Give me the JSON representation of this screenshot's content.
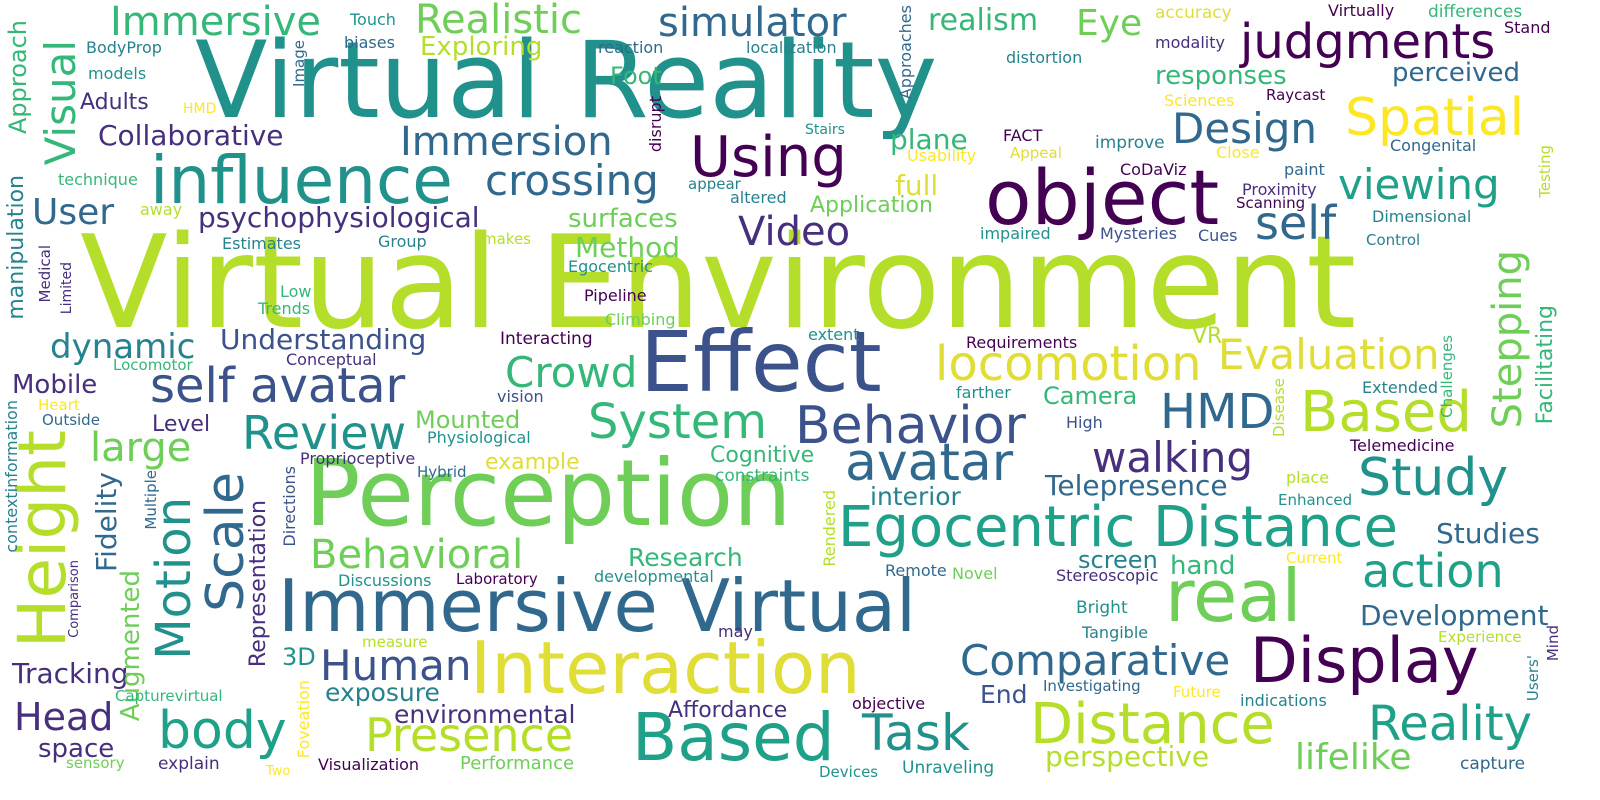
{
  "palette": {
    "background": "#ffffff",
    "deep-purple": "#440154",
    "indigo": "#472f7d",
    "blue": "#3b528b",
    "steel-blue": "#31688e",
    "teal-blue": "#26828e",
    "teal": "#21918c",
    "sea-green": "#1fa088",
    "green": "#35b779",
    "light-green": "#6ece58",
    "lime": "#b5de2b",
    "yellow": "#e1dd37",
    "bright-yellow": "#fde725"
  },
  "words": [
    {
      "text": "Virtual Environment",
      "color": "#b5de2b"
    },
    {
      "text": "Virtual Reality",
      "color": "#21918c"
    },
    {
      "text": "Perception",
      "color": "#6ece58"
    },
    {
      "text": "Immersive Virtual",
      "color": "#31688e"
    },
    {
      "text": "Effect",
      "color": "#3b528b"
    },
    {
      "text": "object",
      "color": "#440154"
    },
    {
      "text": "Interaction",
      "color": "#e1dd37"
    },
    {
      "text": "Egocentric Distance",
      "color": "#1fa088"
    },
    {
      "text": "influence",
      "color": "#21918c"
    },
    {
      "text": "real",
      "color": "#6ece58"
    },
    {
      "text": "Using",
      "color": "#440154"
    },
    {
      "text": "Height",
      "color": "#b5de2b"
    },
    {
      "text": "Display",
      "color": "#440154"
    },
    {
      "text": "Based",
      "color": "#1fa088"
    },
    {
      "text": "Distance",
      "color": "#b5de2b"
    },
    {
      "text": "Based",
      "color": "#b5de2b"
    },
    {
      "text": "HMD",
      "color": "#31688e"
    },
    {
      "text": "System",
      "color": "#35b779"
    },
    {
      "text": "Behavior",
      "color": "#3b528b"
    },
    {
      "text": "self avatar",
      "color": "#3b528b"
    },
    {
      "text": "Scale",
      "color": "#31688e"
    },
    {
      "text": "Motion",
      "color": "#21918c"
    },
    {
      "text": "Spatial",
      "color": "#fde725"
    },
    {
      "text": "judgments",
      "color": "#440154"
    },
    {
      "text": "locomotion",
      "color": "#e1dd37"
    },
    {
      "text": "avatar",
      "color": "#31688e"
    },
    {
      "text": "Study",
      "color": "#21918c"
    },
    {
      "text": "Reality",
      "color": "#1fa088"
    },
    {
      "text": "action",
      "color": "#1fa088"
    },
    {
      "text": "body",
      "color": "#1fa088"
    },
    {
      "text": "Presence",
      "color": "#b5de2b"
    },
    {
      "text": "Task",
      "color": "#21918c"
    },
    {
      "text": "Evaluation",
      "color": "#e1dd37"
    },
    {
      "text": "Comparative",
      "color": "#31688e"
    },
    {
      "text": "Human",
      "color": "#3b528b"
    },
    {
      "text": "Behavioral",
      "color": "#6ece58"
    },
    {
      "text": "Immersive",
      "color": "#35b779"
    },
    {
      "text": "Realistic",
      "color": "#6ece58"
    },
    {
      "text": "simulator",
      "color": "#31688e"
    },
    {
      "text": "crossing",
      "color": "#31688e"
    },
    {
      "text": "Immersion",
      "color": "#31688e"
    },
    {
      "text": "Design",
      "color": "#31688e"
    },
    {
      "text": "viewing",
      "color": "#1fa088"
    },
    {
      "text": "self",
      "color": "#31688e"
    },
    {
      "text": "Video",
      "color": "#472f7d"
    },
    {
      "text": "Review",
      "color": "#21918c"
    },
    {
      "text": "Crowd",
      "color": "#35b779"
    },
    {
      "text": "walking",
      "color": "#472f7d"
    },
    {
      "text": "Visual",
      "color": "#35b779"
    },
    {
      "text": "Stepping",
      "color": "#6ece58"
    },
    {
      "text": "large",
      "color": "#6ece58"
    },
    {
      "text": "dynamic",
      "color": "#26828e"
    },
    {
      "text": "lifelike",
      "color": "#6ece58"
    },
    {
      "text": "perspective",
      "color": "#b5de2b"
    },
    {
      "text": "Head",
      "color": "#472f7d"
    },
    {
      "text": "psychophysiological",
      "color": "#472f7d"
    },
    {
      "text": "Collaborative",
      "color": "#472f7d"
    },
    {
      "text": "Understanding",
      "color": "#3b528b"
    },
    {
      "text": "Telepresence",
      "color": "#31688e"
    },
    {
      "text": "Development",
      "color": "#31688e"
    },
    {
      "text": "Studies",
      "color": "#31688e"
    },
    {
      "text": "Tracking",
      "color": "#472f7d"
    },
    {
      "text": "environmental",
      "color": "#472f7d"
    },
    {
      "text": "Mobile",
      "color": "#472f7d"
    },
    {
      "text": "User",
      "color": "#31688e"
    },
    {
      "text": "Eye",
      "color": "#6ece58"
    },
    {
      "text": "realism",
      "color": "#35b779"
    },
    {
      "text": "Method",
      "color": "#6ece58"
    },
    {
      "text": "surfaces",
      "color": "#6ece58"
    },
    {
      "text": "full",
      "color": "#e1dd37"
    },
    {
      "text": "plane",
      "color": "#35b779"
    },
    {
      "text": "Application",
      "color": "#6ece58"
    },
    {
      "text": "responses",
      "color": "#35b779"
    },
    {
      "text": "perceived",
      "color": "#31688e"
    },
    {
      "text": "Exploring",
      "color": "#b5de2b"
    },
    {
      "text": "Foot",
      "color": "#35b779"
    },
    {
      "text": "exposure",
      "color": "#26828e"
    },
    {
      "text": "End",
      "color": "#3b528b"
    },
    {
      "text": "Affordance",
      "color": "#472f7d"
    },
    {
      "text": "Research",
      "color": "#35b779"
    },
    {
      "text": "interior",
      "color": "#26828e"
    },
    {
      "text": "Mounted",
      "color": "#6ece58"
    },
    {
      "text": "example",
      "color": "#e1dd37"
    },
    {
      "text": "Cognitive",
      "color": "#35b779"
    },
    {
      "text": "Camera",
      "color": "#35b779"
    },
    {
      "text": "hand",
      "color": "#35b779"
    },
    {
      "text": "screen",
      "color": "#26828e"
    },
    {
      "text": "Adults",
      "color": "#472f7d"
    },
    {
      "text": "Level",
      "color": "#472f7d"
    },
    {
      "text": "space",
      "color": "#472f7d"
    },
    {
      "text": "3D",
      "color": "#21918c"
    },
    {
      "text": "Fidelity",
      "color": "#31688e"
    },
    {
      "text": "Augmented",
      "color": "#6ece58"
    },
    {
      "text": "Representation",
      "color": "#472f7d"
    },
    {
      "text": "Approach",
      "color": "#35b779"
    },
    {
      "text": "manipulation",
      "color": "#26828e"
    },
    {
      "text": "Facilitating",
      "color": "#35b779"
    },
    {
      "text": "VR",
      "color": "#b5de2b"
    },
    {
      "text": "Touch",
      "color": "#21918c"
    },
    {
      "text": "biases",
      "color": "#31688e"
    },
    {
      "text": "BodyProp",
      "color": "#26828e"
    },
    {
      "text": "models",
      "color": "#21918c"
    },
    {
      "text": "HMD",
      "color": "#fde725"
    },
    {
      "text": "technique",
      "color": "#35b779"
    },
    {
      "text": "away",
      "color": "#b5de2b"
    },
    {
      "text": "Estimates",
      "color": "#26828e"
    },
    {
      "text": "Group",
      "color": "#26828e"
    },
    {
      "text": "makes",
      "color": "#b5de2b"
    },
    {
      "text": "Egocentric",
      "color": "#21918c"
    },
    {
      "text": "Pipeline",
      "color": "#440154"
    },
    {
      "text": "Low",
      "color": "#35b779"
    },
    {
      "text": "Trends",
      "color": "#35b779"
    },
    {
      "text": "Climbing",
      "color": "#6ece58"
    },
    {
      "text": "Interacting",
      "color": "#440154"
    },
    {
      "text": "Conceptual",
      "color": "#472f7d"
    },
    {
      "text": "Locomotor",
      "color": "#35b779"
    },
    {
      "text": "vision",
      "color": "#3b528b"
    },
    {
      "text": "Heart",
      "color": "#fde725"
    },
    {
      "text": "Outside",
      "color": "#31688e"
    },
    {
      "text": "Physiological",
      "color": "#21918c"
    },
    {
      "text": "Proprioceptive",
      "color": "#472f7d"
    },
    {
      "text": "Hybrid",
      "color": "#31688e"
    },
    {
      "text": "constraints",
      "color": "#35b779"
    },
    {
      "text": "Discussions",
      "color": "#21918c"
    },
    {
      "text": "Laboratory",
      "color": "#440154"
    },
    {
      "text": "developmental",
      "color": "#21918c"
    },
    {
      "text": "Remote",
      "color": "#31688e"
    },
    {
      "text": "Novel",
      "color": "#6ece58"
    },
    {
      "text": "Stereoscopic",
      "color": "#472f7d"
    },
    {
      "text": "Bright",
      "color": "#21918c"
    },
    {
      "text": "Tangible",
      "color": "#26828e"
    },
    {
      "text": "measure",
      "color": "#b5de2b"
    },
    {
      "text": "may",
      "color": "#472f7d"
    },
    {
      "text": "Investigating",
      "color": "#31688e"
    },
    {
      "text": "Future",
      "color": "#fde725"
    },
    {
      "text": "indications",
      "color": "#26828e"
    },
    {
      "text": "objective",
      "color": "#440154"
    },
    {
      "text": "Capturevirtual",
      "color": "#35b779"
    },
    {
      "text": "sensory",
      "color": "#6ece58"
    },
    {
      "text": "explain",
      "color": "#472f7d"
    },
    {
      "text": "Two",
      "color": "#fde725"
    },
    {
      "text": "Visualization",
      "color": "#440154"
    },
    {
      "text": "Performance",
      "color": "#6ece58"
    },
    {
      "text": "Devices",
      "color": "#21918c"
    },
    {
      "text": "Unraveling",
      "color": "#21918c"
    },
    {
      "text": "capture",
      "color": "#31688e"
    },
    {
      "text": "Experience",
      "color": "#b5de2b"
    },
    {
      "text": "Current",
      "color": "#fde725"
    },
    {
      "text": "Enhanced",
      "color": "#21918c"
    },
    {
      "text": "place",
      "color": "#b5de2b"
    },
    {
      "text": "Telemedicine",
      "color": "#440154"
    },
    {
      "text": "Extended",
      "color": "#26828e"
    },
    {
      "text": "farther",
      "color": "#21918c"
    },
    {
      "text": "High",
      "color": "#3b528b"
    },
    {
      "text": "extent",
      "color": "#21918c"
    },
    {
      "text": "Requirements",
      "color": "#440154"
    },
    {
      "text": "impaired",
      "color": "#21918c"
    },
    {
      "text": "Mysteries",
      "color": "#3b528b"
    },
    {
      "text": "Cues",
      "color": "#3b528b"
    },
    {
      "text": "Control",
      "color": "#26828e"
    },
    {
      "text": "Dimensional",
      "color": "#26828e"
    },
    {
      "text": "Scanning",
      "color": "#440154"
    },
    {
      "text": "Proximity",
      "color": "#472f7d"
    },
    {
      "text": "paint",
      "color": "#31688e"
    },
    {
      "text": "Close",
      "color": "#fde725"
    },
    {
      "text": "Congenital",
      "color": "#31688e"
    },
    {
      "text": "CoDaViz",
      "color": "#440154"
    },
    {
      "text": "improve",
      "color": "#26828e"
    },
    {
      "text": "FACT",
      "color": "#440154"
    },
    {
      "text": "Appeal",
      "color": "#e1dd37"
    },
    {
      "text": "Usability",
      "color": "#fde725"
    },
    {
      "text": "Stairs",
      "color": "#21918c"
    },
    {
      "text": "appear",
      "color": "#26828e"
    },
    {
      "text": "altered",
      "color": "#26828e"
    },
    {
      "text": "reaction",
      "color": "#31688e"
    },
    {
      "text": "localization",
      "color": "#26828e"
    },
    {
      "text": "distortion",
      "color": "#26828e"
    },
    {
      "text": "accuracy",
      "color": "#e1dd37"
    },
    {
      "text": "modality",
      "color": "#472f7d"
    },
    {
      "text": "Sciences",
      "color": "#fde725"
    },
    {
      "text": "Raycast",
      "color": "#440154"
    },
    {
      "text": "Virtually",
      "color": "#440154"
    },
    {
      "text": "differences",
      "color": "#35b779"
    },
    {
      "text": "Stand",
      "color": "#440154"
    },
    {
      "text": "Image",
      "color": "#31688e"
    },
    {
      "text": "Approaches",
      "color": "#31688e"
    },
    {
      "text": "disrupt",
      "color": "#440154"
    },
    {
      "text": "Medical",
      "color": "#472f7d"
    },
    {
      "text": "Limited",
      "color": "#472f7d"
    },
    {
      "text": "contextinformation",
      "color": "#26828e"
    },
    {
      "text": "Comparison",
      "color": "#472f7d"
    },
    {
      "text": "Multiple",
      "color": "#31688e"
    },
    {
      "text": "Directions",
      "color": "#3b528b"
    },
    {
      "text": "Foveation",
      "color": "#fde725"
    },
    {
      "text": "Rendered",
      "color": "#b5de2b"
    },
    {
      "text": "Disease",
      "color": "#b5de2b"
    },
    {
      "text": "Challenges",
      "color": "#35b779"
    },
    {
      "text": "Testing",
      "color": "#b5de2b"
    },
    {
      "text": "Users'",
      "color": "#26828e"
    },
    {
      "text": "Mind",
      "color": "#472f7d"
    }
  ]
}
